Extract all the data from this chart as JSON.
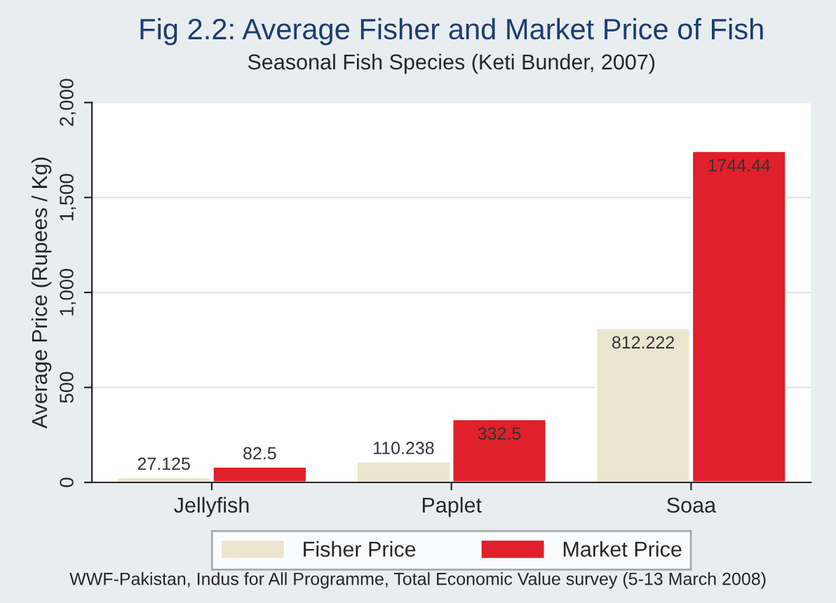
{
  "chart_data": {
    "type": "bar",
    "title": "Fig 2.2: Average Fisher and Market Price of Fish",
    "subtitle": "Seasonal Fish Species (Keti Bunder, 2007)",
    "ylabel": "Average Price (Rupees / Kg)",
    "categories": [
      "Jellyfish",
      "Paplet",
      "Soaa"
    ],
    "series": [
      {
        "name": "Fisher Price",
        "color": "#ebe5d0",
        "values": [
          27.125,
          110.238,
          812.222
        ]
      },
      {
        "name": "Market Price",
        "color": "#e0202a",
        "values": [
          82.5,
          332.5,
          1744.44
        ]
      }
    ],
    "ylim": [
      0,
      2000
    ],
    "yticks": [
      {
        "value": 0,
        "label": "0"
      },
      {
        "value": 500,
        "label": "500"
      },
      {
        "value": 1000,
        "label": "1,000"
      },
      {
        "value": 1500,
        "label": "1,500"
      },
      {
        "value": 2000,
        "label": "2,000"
      }
    ],
    "grid": "y",
    "legend": "bottom",
    "data_labels": true,
    "annotations": [
      "WWF-Pakistan, Indus for All Programme, Total Economic Value survey (5-13 March 2008)"
    ]
  }
}
